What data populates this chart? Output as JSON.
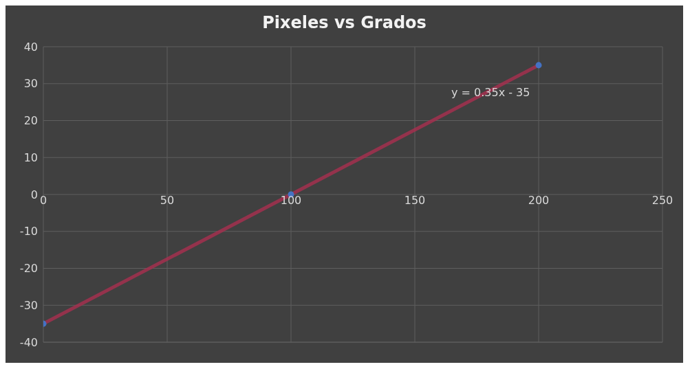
{
  "chart_data": {
    "type": "scatter",
    "title": "Pixeles vs Grados",
    "series": [
      {
        "color": "#4472c4",
        "marker": "circle",
        "x": [
          0,
          100,
          200
        ],
        "values": [
          -35,
          0,
          35
        ]
      },
      {
        "type": "line",
        "marker": "none",
        "color": "#a3304f",
        "x": [
          0,
          200
        ],
        "values": [
          -35,
          35
        ]
      }
    ],
    "xlim": [
      0,
      250
    ],
    "xticks": [
      0,
      50,
      100,
      150,
      200,
      250
    ],
    "ylim": [
      -40,
      40
    ],
    "yticks": [
      -40,
      -30,
      -20,
      -10,
      0,
      10,
      20,
      30,
      40
    ],
    "grid": true,
    "legend": false,
    "annotations": [
      "y = 0.35x - 35"
    ]
  }
}
